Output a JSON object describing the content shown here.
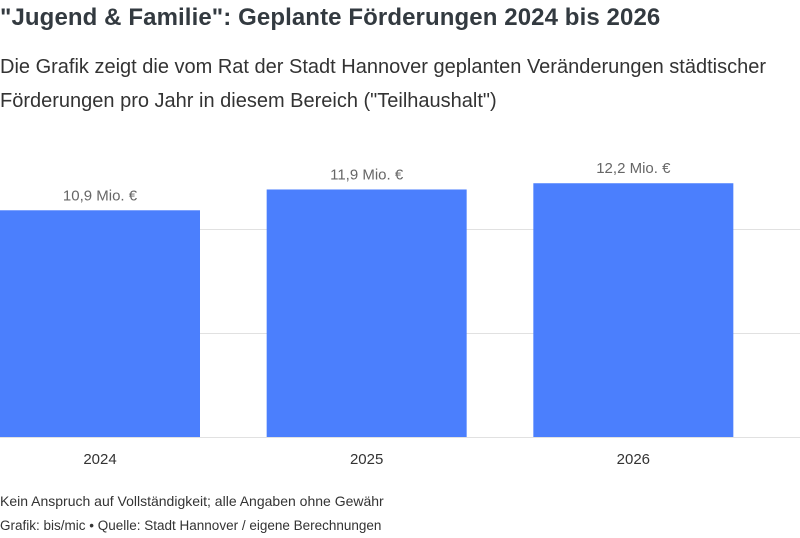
{
  "title": "\"Jugend & Familie\": Geplante Förderungen 2024 bis 2026",
  "subtitle": "Die Grafik zeigt die vom Rat der Stadt Hannover geplanten Veränderungen städtischer Förderungen pro Jahr in diesem Bereich (\"Teilhaushalt\")",
  "note": "Kein Anspruch auf Vollständigkeit; alle Angaben ohne Gewähr",
  "source": "Grafik: bis/mic • Quelle: Stadt Hannover / eigene Berechnungen",
  "colors": {
    "bar": "#4b7ffd",
    "grid": "#e1e1e1",
    "label": "#666666",
    "tick": "#333333"
  },
  "chart_data": {
    "type": "bar",
    "categories": [
      "2024",
      "2025",
      "2026"
    ],
    "values": [
      10.9,
      11.9,
      12.2
    ],
    "value_labels": [
      "10,9 Mio. €",
      "11,9 Mio. €",
      "12,2 Mio. €"
    ],
    "title": "\"Jugend & Familie\": Geplante Förderungen 2024 bis 2026",
    "xlabel": "",
    "ylabel": "",
    "ylim": [
      0,
      15
    ],
    "grid": true,
    "gridlines": [
      5,
      10
    ],
    "legend": "none"
  }
}
